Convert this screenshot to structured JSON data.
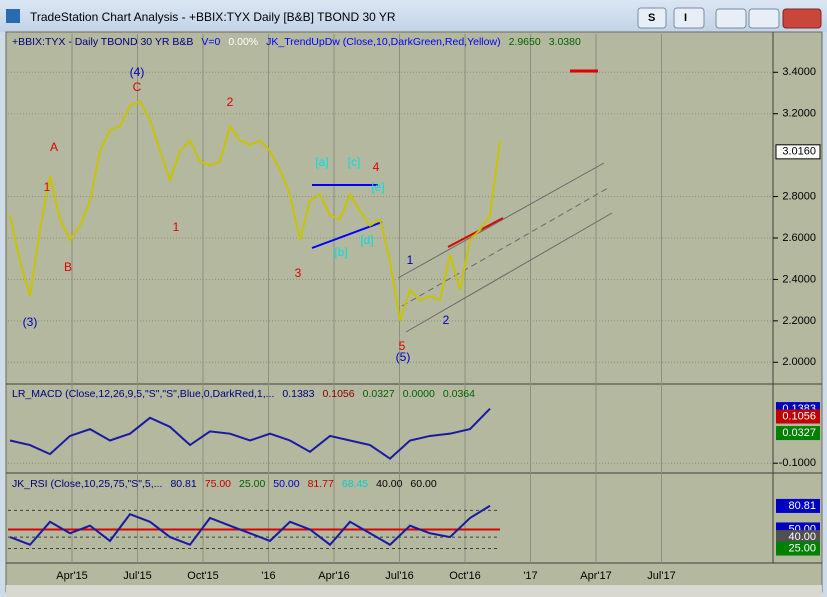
{
  "window": {
    "title": "TradeStation Chart Analysis - +BBIX:TYX Daily [B&B] TBOND 30 YR",
    "menu_buttons": [
      "S",
      "I"
    ]
  },
  "time_axis": [
    "Apr'15",
    "Jul'15",
    "Oct'15",
    "'16",
    "Apr'16",
    "Jul'16",
    "Oct'16",
    "'17",
    "Apr'17",
    "Jul'17"
  ],
  "chart_data": [
    {
      "type": "line",
      "header": [
        {
          "text": "+BBIX:TYX - Daily  TBOND 30 YR  B&B",
          "color": "#000080"
        },
        {
          "text": "V=0",
          "color": "#0000ff"
        },
        {
          "text": "0.00%",
          "color": "#ffffff"
        },
        {
          "text": "JK_TrendUpDw (Close,10,DarkGreen,Red,Yellow)",
          "color": "#0000ff"
        },
        {
          "text": "2.9650",
          "color": "#006400"
        },
        {
          "text": "3.0380",
          "color": "#006400"
        }
      ],
      "ylim": [
        1.9,
        3.58
      ],
      "yticks": [
        {
          "value": 2.0,
          "label": "2.0000"
        },
        {
          "value": 2.2,
          "label": "2.2000"
        },
        {
          "value": 2.4,
          "label": "2.4000"
        },
        {
          "value": 2.6,
          "label": "2.6000"
        },
        {
          "value": 2.8,
          "label": "2.8000"
        },
        {
          "value": 3.2,
          "label": "3.2000"
        },
        {
          "value": 3.4,
          "label": "3.4000"
        }
      ],
      "last": {
        "value": 3.016,
        "label": "3.0160"
      },
      "color": "#c8c400",
      "values": [
        2.71,
        2.49,
        2.32,
        2.64,
        2.9,
        2.69,
        2.59,
        2.66,
        2.78,
        3.02,
        3.12,
        3.14,
        3.24,
        3.26,
        3.17,
        3.02,
        2.88,
        3.02,
        3.07,
        2.97,
        2.95,
        2.97,
        3.14,
        3.07,
        3.05,
        3.07,
        3.02,
        2.93,
        2.81,
        2.59,
        2.78,
        2.81,
        2.71,
        2.69,
        2.81,
        2.73,
        2.66,
        2.69,
        2.49,
        2.2,
        2.35,
        2.3,
        2.32,
        2.3,
        2.52,
        2.35,
        2.59,
        2.64,
        2.71,
        3.07
      ],
      "wave_labels": [
        {
          "text": "(4)",
          "color": "#0000c0"
        },
        {
          "text": "C",
          "color": "#e00000"
        },
        {
          "text": "2",
          "color": "#e00000"
        },
        {
          "text": "A",
          "color": "#e00000"
        },
        {
          "text": "1",
          "color": "#e00000"
        },
        {
          "text": "B",
          "color": "#e00000"
        },
        {
          "text": "1",
          "color": "#e00000"
        },
        {
          "text": "3",
          "color": "#e00000"
        },
        {
          "text": "(3)",
          "color": "#0000c0"
        },
        {
          "text": "[a]",
          "color": "#00e0e0"
        },
        {
          "text": "[c]",
          "color": "#00e0e0"
        },
        {
          "text": "4",
          "color": "#e00000"
        },
        {
          "text": "[e]",
          "color": "#00e0e0"
        },
        {
          "text": "[b]",
          "color": "#00e0e0"
        },
        {
          "text": "[d]",
          "color": "#00e0e0"
        },
        {
          "text": "1",
          "color": "#0000c0"
        },
        {
          "text": "2",
          "color": "#0000c0"
        },
        {
          "text": "5",
          "color": "#e00000"
        },
        {
          "text": "(5)",
          "color": "#0000c0"
        }
      ]
    },
    {
      "type": "line",
      "header": [
        {
          "text": "LR_MACD (Close,12,26,9,5,\"S\",\"S\",Blue,0,DarkRed,1,...",
          "color": "#000080"
        },
        {
          "text": "0.1383",
          "color": "#000080"
        },
        {
          "text": "0.1056",
          "color": "#8b0000"
        },
        {
          "text": "0.0327",
          "color": "#006400"
        },
        {
          "text": "0.0000",
          "color": "#006400"
        },
        {
          "text": "0.0364",
          "color": "#006400"
        }
      ],
      "ylim": [
        -0.13,
        0.24
      ],
      "yticks": [
        {
          "value": -0.1,
          "label": "-0.1000"
        }
      ],
      "boxes": [
        {
          "value": 0.1383,
          "label": "0.1383",
          "color": "#0000c0"
        },
        {
          "value": 0.1056,
          "label": "0.1056",
          "color": "#c00000"
        },
        {
          "value": 0.0327,
          "label": "0.0327",
          "color": "#008000"
        }
      ],
      "color": "#1a1aa0",
      "values": [
        0.0,
        -0.02,
        -0.06,
        0.02,
        0.05,
        0.0,
        0.03,
        0.1,
        0.06,
        -0.02,
        0.04,
        0.03,
        0.0,
        0.03,
        0.0,
        -0.05,
        0.02,
        0.0,
        -0.02,
        -0.08,
        0.0,
        0.02,
        0.03,
        0.05,
        0.14
      ]
    },
    {
      "type": "line",
      "header": [
        {
          "text": "JK_RSI (Close,10,25,75,\"S\",5,...",
          "color": "#000080"
        },
        {
          "text": "80.81",
          "color": "#000080"
        },
        {
          "text": "75.00",
          "color": "#c00000"
        },
        {
          "text": "25.00",
          "color": "#006400"
        },
        {
          "text": "50.00",
          "color": "#0000c0"
        },
        {
          "text": "81.77",
          "color": "#c00000"
        },
        {
          "text": "68.45",
          "color": "#00d0d0"
        },
        {
          "text": "40.00",
          "color": "#000000"
        },
        {
          "text": "60.00",
          "color": "#000000"
        }
      ],
      "ylim": [
        10,
        120
      ],
      "levels": [
        75,
        50,
        40,
        25
      ],
      "boxes": [
        {
          "value": 80.81,
          "label": "80.81",
          "color": "#0000c0"
        },
        {
          "value": 50,
          "label": "50.00",
          "color": "#0000c0"
        },
        {
          "value": 40,
          "label": "40.00",
          "color": "#505050"
        },
        {
          "value": 25,
          "label": "25.00",
          "color": "#008000"
        }
      ],
      "color": "#1a1aa0",
      "values": [
        40,
        30,
        60,
        45,
        55,
        35,
        70,
        60,
        40,
        30,
        65,
        55,
        45,
        35,
        60,
        50,
        30,
        60,
        45,
        30,
        55,
        45,
        40,
        65,
        81
      ]
    }
  ]
}
